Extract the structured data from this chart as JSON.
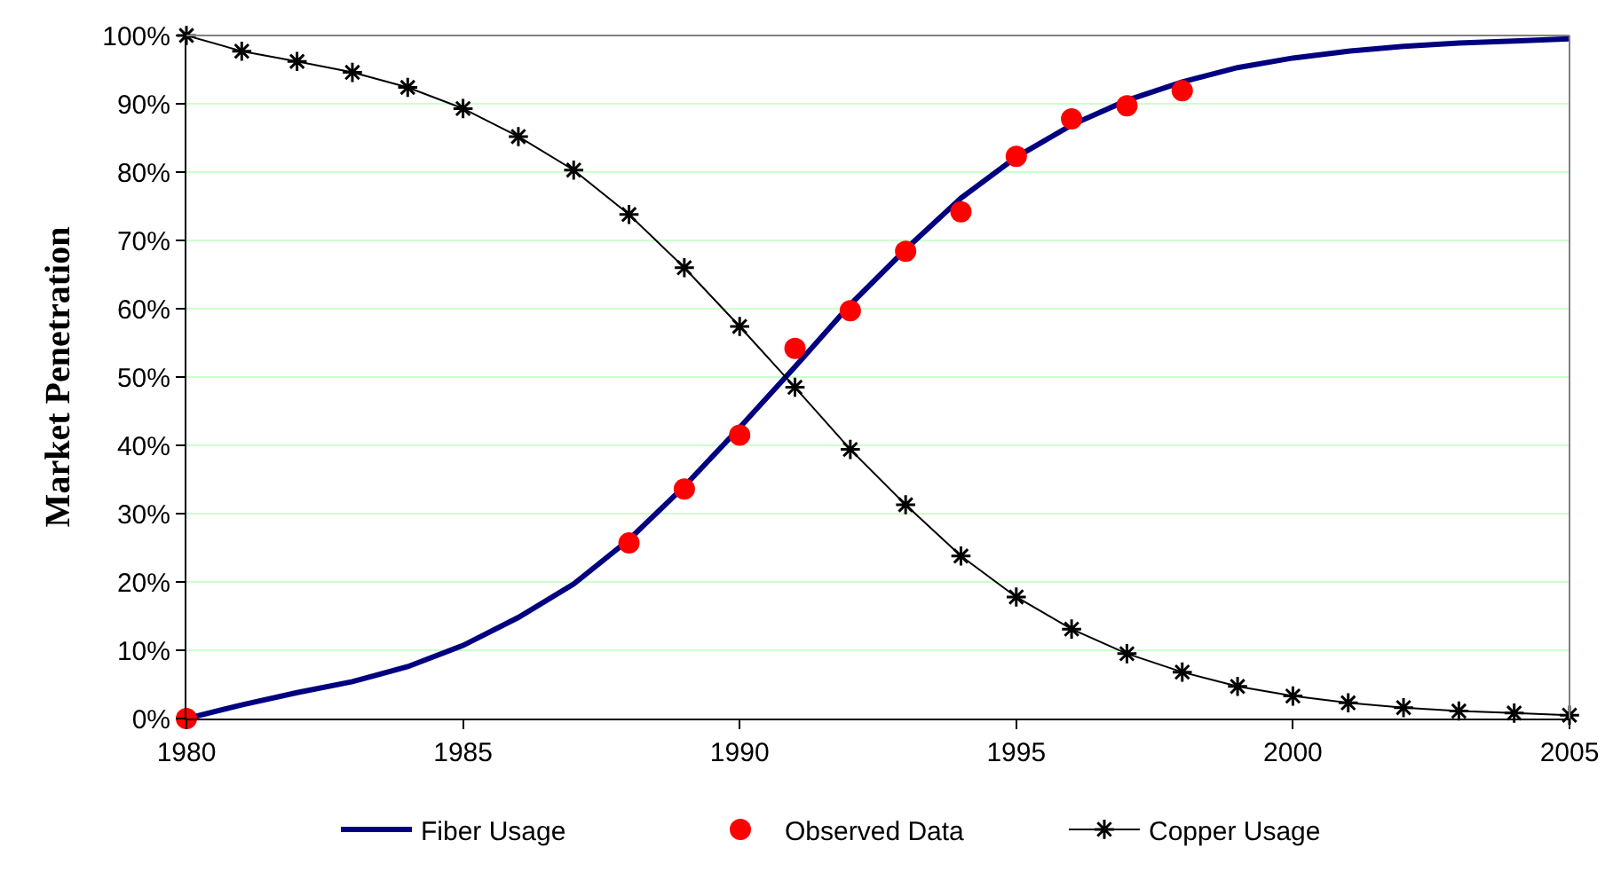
{
  "chart_data": {
    "type": "line",
    "ylabel": "Market Penetration",
    "x": [
      1980,
      1981,
      1982,
      1983,
      1984,
      1985,
      1986,
      1987,
      1988,
      1989,
      1990,
      1991,
      1992,
      1993,
      1994,
      1995,
      1996,
      1997,
      1998,
      1999,
      2000,
      2001,
      2002,
      2003,
      2004,
      2005
    ],
    "series": [
      {
        "name": "Fiber Usage",
        "color": "#000080",
        "marker": "none",
        "values": [
          0,
          2,
          3.8,
          5.4,
          7.6,
          10.7,
          14.8,
          19.7,
          26.2,
          34,
          42.6,
          51.5,
          60.6,
          68.7,
          76.2,
          82.2,
          86.9,
          90.5,
          93.2,
          95.3,
          96.7,
          97.7,
          98.4,
          98.9,
          99.2,
          99.5
        ]
      },
      {
        "name": "Observed Data",
        "type": "scatter",
        "color": "#ff0000",
        "marker": "circle",
        "x": [
          1980,
          1988,
          1989,
          1990,
          1991,
          1992,
          1993,
          1994,
          1995,
          1996,
          1997,
          1998
        ],
        "values": [
          0,
          25.7,
          33.6,
          41.5,
          54.2,
          59.7,
          68.4,
          74.2,
          82.3,
          87.8,
          89.7,
          91.9
        ]
      },
      {
        "name": "Copper Usage",
        "color": "#000000",
        "marker": "cross",
        "values": [
          100,
          97.7,
          96.2,
          94.6,
          92.4,
          89.3,
          85.2,
          80.3,
          73.8,
          66,
          57.4,
          48.5,
          39.4,
          31.3,
          23.8,
          17.8,
          13.1,
          9.5,
          6.8,
          4.7,
          3.3,
          2.3,
          1.6,
          1.1,
          0.8,
          0.5
        ]
      }
    ],
    "xlim": [
      1980,
      2005
    ],
    "xticks": [
      1980,
      1985,
      1990,
      1995,
      2000,
      2005
    ],
    "ylim": [
      0,
      100
    ],
    "yticks": [
      {
        "value": 0,
        "label": "0%"
      },
      {
        "value": 10,
        "label": "10%"
      },
      {
        "value": 20,
        "label": "20%"
      },
      {
        "value": 30,
        "label": "30%"
      },
      {
        "value": 40,
        "label": "40%"
      },
      {
        "value": 50,
        "label": "50%"
      },
      {
        "value": 60,
        "label": "60%"
      },
      {
        "value": 70,
        "label": "70%"
      },
      {
        "value": 80,
        "label": "80%"
      },
      {
        "value": 90,
        "label": "90%"
      },
      {
        "value": 100,
        "label": "100%"
      }
    ],
    "grid": "y",
    "legend": "bottom"
  }
}
